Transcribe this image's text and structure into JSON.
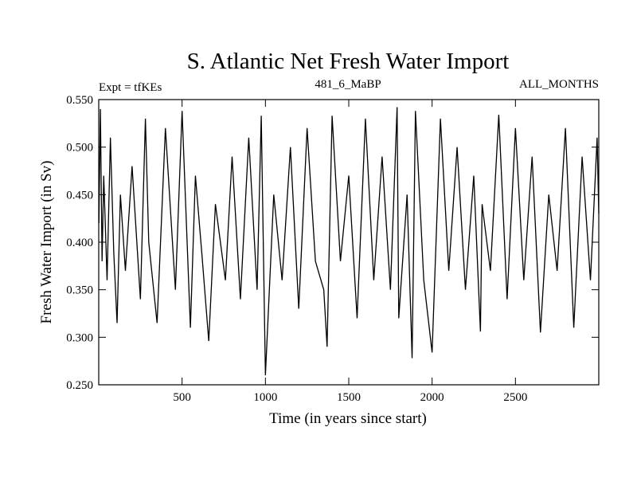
{
  "chart_data": {
    "type": "line",
    "title": "S. Atlantic Net Fresh Water Import",
    "subtitle_left": "Expt = tfKEs",
    "subtitle_center": "481_6_MaBP",
    "subtitle_right": "ALL_MONTHS",
    "xlabel": "Time (in years since start)",
    "ylabel": "Fresh Water Import (in Sv)",
    "xlim": [
      0,
      3000
    ],
    "ylim": [
      0.25,
      0.55
    ],
    "xticks": [
      500,
      1000,
      1500,
      2000,
      2500
    ],
    "xtick_labels": [
      "500",
      "1000",
      "1500",
      "2000",
      "2500"
    ],
    "yticks": [
      0.25,
      0.3,
      0.35,
      0.4,
      0.45,
      0.5,
      0.55
    ],
    "ytick_labels": [
      "0.250",
      "0.300",
      "0.350",
      "0.400",
      "0.450",
      "0.500",
      "0.550"
    ],
    "grid": false,
    "line_color": "#000000",
    "series": [
      {
        "x": [
          1,
          10,
          20,
          30,
          50,
          70,
          90,
          110,
          130,
          160,
          200,
          250,
          280,
          300,
          350,
          400,
          460,
          500,
          550,
          580,
          620,
          660,
          700,
          760,
          800,
          850,
          900,
          950,
          975,
          1000,
          1050,
          1100,
          1150,
          1200,
          1250,
          1300,
          1350,
          1370,
          1400,
          1450,
          1500,
          1550,
          1600,
          1650,
          1700,
          1750,
          1790,
          1800,
          1850,
          1880,
          1900,
          1950,
          2000,
          2050,
          2100,
          2150,
          2200,
          2250,
          2290,
          2300,
          2350,
          2400,
          2450,
          2500,
          2550,
          2600,
          2650,
          2700,
          2750,
          2800,
          2850,
          2900,
          2950,
          2990,
          3000
        ],
        "values": [
          0.42,
          0.54,
          0.38,
          0.47,
          0.36,
          0.51,
          0.39,
          0.315,
          0.45,
          0.37,
          0.48,
          0.34,
          0.53,
          0.4,
          0.315,
          0.52,
          0.35,
          0.538,
          0.31,
          0.47,
          0.385,
          0.296,
          0.44,
          0.36,
          0.49,
          0.34,
          0.51,
          0.35,
          0.533,
          0.26,
          0.45,
          0.36,
          0.5,
          0.33,
          0.52,
          0.38,
          0.35,
          0.29,
          0.533,
          0.38,
          0.47,
          0.32,
          0.53,
          0.36,
          0.49,
          0.35,
          0.542,
          0.32,
          0.45,
          0.278,
          0.538,
          0.36,
          0.284,
          0.53,
          0.37,
          0.5,
          0.35,
          0.47,
          0.306,
          0.44,
          0.37,
          0.534,
          0.34,
          0.52,
          0.36,
          0.49,
          0.305,
          0.45,
          0.37,
          0.52,
          0.31,
          0.49,
          0.36,
          0.51,
          0.43
        ]
      }
    ]
  }
}
